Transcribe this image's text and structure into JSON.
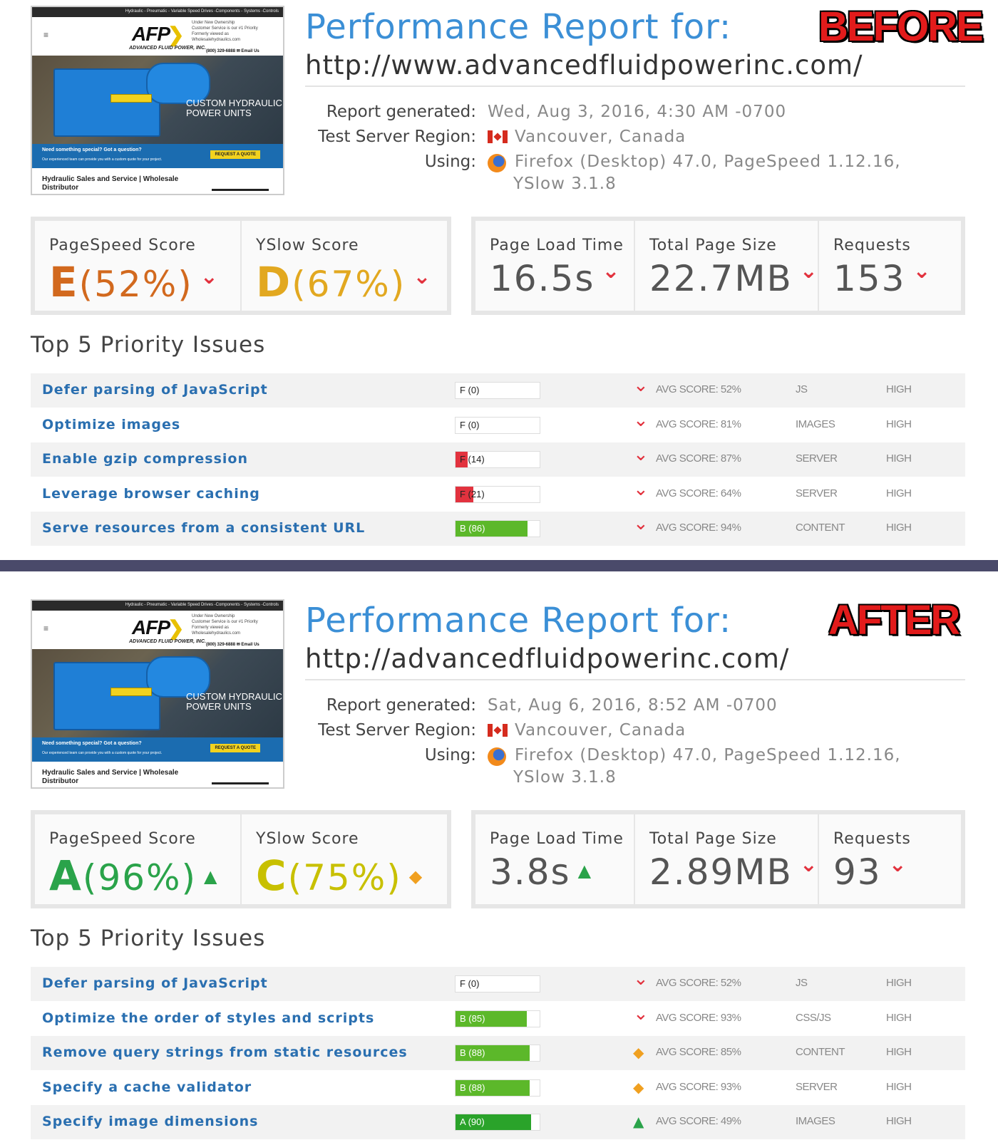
{
  "thumbnail": {
    "topbar": "Hydraulic - Pneumatic - Variable Speed Drives -Components - Systems -Controls",
    "menu_icon": "hamburger-icon",
    "logo": "AFP",
    "logo_sub": "ADVANCED FLUID POWER, INC.",
    "info_lines": [
      "Under New Ownership",
      "Customer Service is our #1 Priority",
      "Formerly viewed as",
      "Wholesalehydraulics.com"
    ],
    "phone": "(800) 329-6888   ✉ Email Us",
    "hero_line1": "CUSTOM HYDRAULIC",
    "hero_line2": "POWER UNITS",
    "band_question": "Need something special?  Got a question?",
    "band_sub": "Our experienced team can provide you with a custom quote for your project.",
    "band_button": "REQUEST A QUOTE",
    "footer_text": "Hydraulic Sales and Service | Wholesale Distributor"
  },
  "reports": [
    {
      "stamp": "BEFORE",
      "title": "Performance Report for:",
      "url": "http://www.advancedfluidpowerinc.com/",
      "meta": {
        "generated_label": "Report generated:",
        "generated_value": "Wed, Aug 3, 2016, 4:30 AM -0700",
        "region_label": "Test Server Region:",
        "region_value": "Vancouver, Canada",
        "using_label": "Using:",
        "using_value1": "Firefox (Desktop) 47.0, PageSpeed 1.12.16,",
        "using_value2": "YSlow 3.1.8"
      },
      "scores": {
        "pagespeed_label": "PageSpeed Score",
        "pagespeed_grade": "E",
        "pagespeed_pct": "(52%)",
        "pagespeed_trend": "down",
        "pagespeed_color": "#d2691e",
        "yslow_label": "YSlow Score",
        "yslow_grade": "D",
        "yslow_pct": "(67%)",
        "yslow_trend": "down",
        "yslow_color": "#e2a820",
        "load_label": "Page Load Time",
        "load_value": "16.5s",
        "load_trend": "down",
        "size_label": "Total Page Size",
        "size_value": "22.7MB",
        "size_trend": "down",
        "req_label": "Requests",
        "req_value": "153",
        "req_trend": "down"
      },
      "issues_heading": "Top 5 Priority Issues",
      "issues": [
        {
          "name": "Defer parsing of JavaScript",
          "grade": "F (0)",
          "score": 0,
          "fill": "#e2323e",
          "trend": "down",
          "avg": "AVG SCORE: 52%",
          "type": "JS",
          "priority": "HIGH"
        },
        {
          "name": "Optimize images",
          "grade": "F (0)",
          "score": 0,
          "fill": "#e2323e",
          "trend": "down",
          "avg": "AVG SCORE: 81%",
          "type": "IMAGES",
          "priority": "HIGH"
        },
        {
          "name": "Enable gzip compression",
          "grade": "F (14)",
          "score": 14,
          "fill": "#e2323e",
          "trend": "down",
          "avg": "AVG SCORE: 87%",
          "type": "SERVER",
          "priority": "HIGH"
        },
        {
          "name": "Leverage browser caching",
          "grade": "F (21)",
          "score": 21,
          "fill": "#e2323e",
          "trend": "down",
          "avg": "AVG SCORE: 64%",
          "type": "SERVER",
          "priority": "HIGH"
        },
        {
          "name": "Serve resources from a consistent URL",
          "grade": "B (86)",
          "score": 86,
          "fill": "#5cb82a",
          "trend": "down",
          "avg": "AVG SCORE: 94%",
          "type": "CONTENT",
          "priority": "HIGH"
        }
      ]
    },
    {
      "stamp": "AFTER",
      "title": "Performance Report for:",
      "url": "http://advancedfluidpowerinc.com/",
      "meta": {
        "generated_label": "Report generated:",
        "generated_value": "Sat, Aug 6, 2016, 8:52 AM -0700",
        "region_label": "Test Server Region:",
        "region_value": "Vancouver, Canada",
        "using_label": "Using:",
        "using_value1": "Firefox (Desktop) 47.0, PageSpeed 1.12.16,",
        "using_value2": "YSlow 3.1.8"
      },
      "scores": {
        "pagespeed_label": "PageSpeed Score",
        "pagespeed_grade": "A",
        "pagespeed_pct": "(96%)",
        "pagespeed_trend": "up",
        "pagespeed_color": "#2aa34a",
        "yslow_label": "YSlow Score",
        "yslow_grade": "C",
        "yslow_pct": "(75%)",
        "yslow_trend": "mid",
        "yslow_color": "#c8c000",
        "load_label": "Page Load Time",
        "load_value": "3.8s",
        "load_trend": "up",
        "size_label": "Total Page Size",
        "size_value": "2.89MB",
        "size_trend": "down",
        "req_label": "Requests",
        "req_value": "93",
        "req_trend": "down"
      },
      "issues_heading": "Top 5 Priority Issues",
      "issues": [
        {
          "name": "Defer parsing of JavaScript",
          "grade": "F (0)",
          "score": 0,
          "fill": "#e2323e",
          "trend": "down",
          "avg": "AVG SCORE: 52%",
          "type": "JS",
          "priority": "HIGH"
        },
        {
          "name": "Optimize the order of styles and scripts",
          "grade": "B (85)",
          "score": 85,
          "fill": "#5cb82a",
          "trend": "down",
          "avg": "AVG SCORE: 93%",
          "type": "CSS/JS",
          "priority": "HIGH"
        },
        {
          "name": "Remove query strings from static resources",
          "grade": "B (88)",
          "score": 88,
          "fill": "#5cb82a",
          "trend": "mid",
          "avg": "AVG SCORE: 85%",
          "type": "CONTENT",
          "priority": "HIGH"
        },
        {
          "name": "Specify a cache validator",
          "grade": "B (88)",
          "score": 88,
          "fill": "#5cb82a",
          "trend": "mid",
          "avg": "AVG SCORE: 93%",
          "type": "SERVER",
          "priority": "HIGH"
        },
        {
          "name": "Specify image dimensions",
          "grade": "A (90)",
          "score": 90,
          "fill": "#2aa32a",
          "trend": "up",
          "avg": "AVG SCORE: 49%",
          "type": "IMAGES",
          "priority": "HIGH"
        }
      ]
    }
  ]
}
